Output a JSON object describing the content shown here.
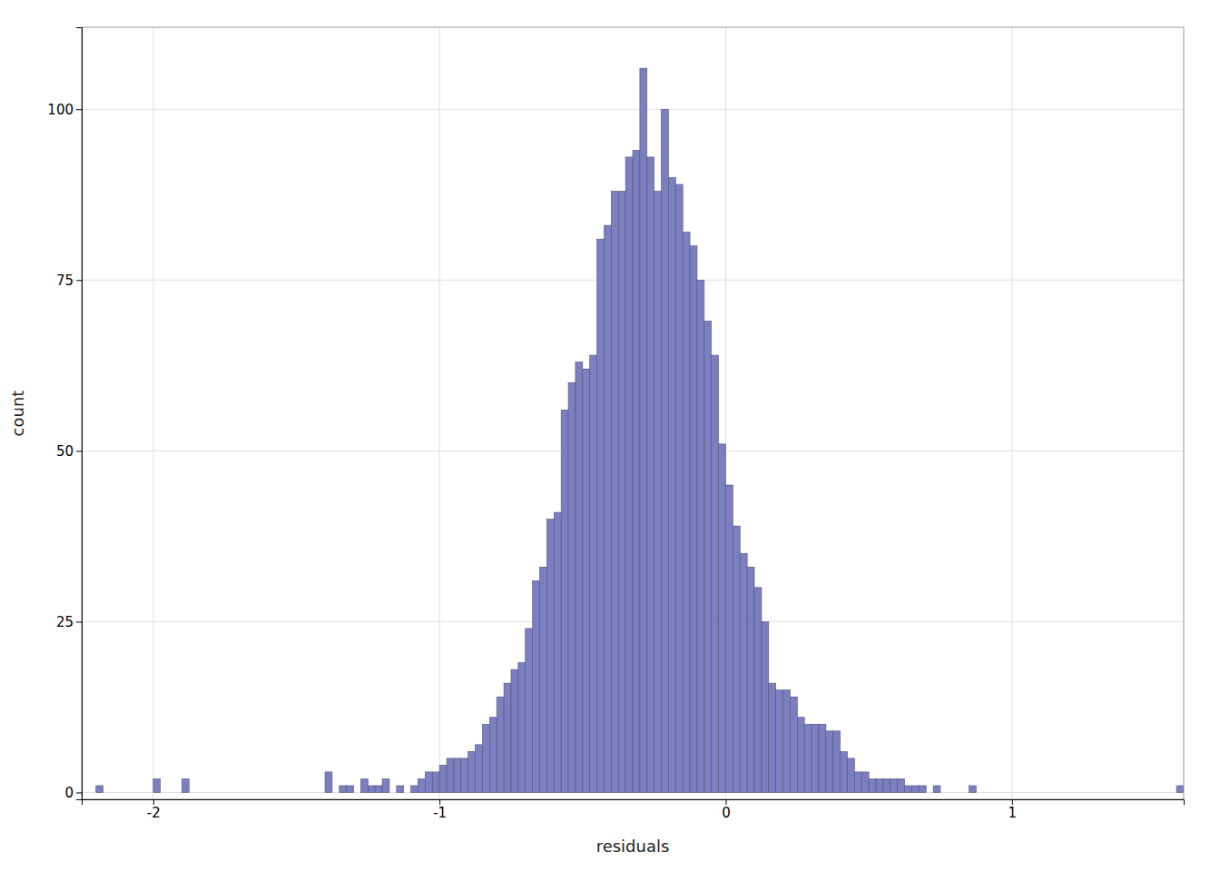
{
  "chart_data": {
    "type": "histogram",
    "xlabel": "residuals",
    "ylabel": "count",
    "xlim": [
      -2.25,
      1.6
    ],
    "ylim": [
      -1,
      112
    ],
    "xticks": [
      -2,
      -1,
      0,
      1
    ],
    "yticks": [
      0,
      25,
      50,
      75,
      100
    ],
    "color": "#7b7fbf",
    "grid": true,
    "bins": [
      -2.2,
      -2.175,
      -2.15,
      -2.125,
      -2.1,
      -2.075,
      -2.05,
      -2.025,
      -2,
      -1.975,
      -1.95,
      -1.925,
      -1.9,
      -1.875,
      -1.85,
      -1.825,
      -1.8,
      -1.775,
      -1.75,
      -1.725,
      -1.7,
      -1.675,
      -1.65,
      -1.625,
      -1.6,
      -1.575,
      -1.55,
      -1.525,
      -1.5,
      -1.475,
      -1.45,
      -1.425,
      -1.4,
      -1.375,
      -1.35,
      -1.325,
      -1.3,
      -1.275,
      -1.25,
      -1.225,
      -1.2,
      -1.175,
      -1.15,
      -1.125,
      -1.1,
      -1.075,
      -1.05,
      -1.025,
      -1,
      -0.975,
      -0.95,
      -0.925,
      -0.9,
      -0.875,
      -0.85,
      -0.825,
      -0.8,
      -0.775,
      -0.75,
      -0.725,
      -0.7,
      -0.675,
      -0.65,
      -0.625,
      -0.6,
      -0.575,
      -0.55,
      -0.525,
      -0.5,
      -0.475,
      -0.45,
      -0.425,
      -0.4,
      -0.375,
      -0.35,
      -0.325,
      -0.3,
      -0.275,
      -0.25,
      -0.225,
      -0.2,
      -0.175,
      -0.15,
      -0.125,
      -0.1,
      -0.075,
      -0.05,
      -0.025,
      0,
      0.025,
      0.05,
      0.075,
      0.1,
      0.125,
      0.15,
      0.175,
      0.2,
      0.225,
      0.25,
      0.275,
      0.3,
      0.325,
      0.35,
      0.375,
      0.4,
      0.425,
      0.45,
      0.475,
      0.5,
      0.525,
      0.55,
      0.575,
      0.6,
      0.625,
      0.65,
      0.675,
      0.7,
      0.725,
      0.75,
      0.775,
      0.8,
      0.825,
      0.85,
      0.875,
      0.9,
      0.925,
      0.95,
      0.975,
      1,
      1.025,
      1.05,
      1.075,
      1.1,
      1.125,
      1.15,
      1.175,
      1.2,
      1.225,
      1.25,
      1.275,
      1.3,
      1.325,
      1.35,
      1.375,
      1.4,
      1.425,
      1.45,
      1.475,
      1.5,
      1.525,
      1.55,
      1.575,
      1.6
    ],
    "values": [
      1,
      0,
      0,
      0,
      0,
      0,
      0,
      0,
      2,
      0,
      0,
      0,
      2,
      0,
      0,
      0,
      0,
      0,
      0,
      0,
      0,
      0,
      0,
      0,
      0,
      0,
      0,
      0,
      0,
      0,
      0,
      0,
      3,
      0,
      1,
      1,
      0,
      2,
      1,
      1,
      2,
      0,
      1,
      0,
      1,
      2,
      3,
      3,
      4,
      5,
      5,
      5,
      6,
      7,
      10,
      11,
      14,
      16,
      18,
      19,
      24,
      31,
      33,
      40,
      41,
      56,
      60,
      63,
      62,
      64,
      81,
      83,
      88,
      88,
      93,
      94,
      106,
      93,
      88,
      100,
      90,
      89,
      82,
      80,
      75,
      69,
      64,
      51,
      45,
      39,
      35,
      33,
      30,
      25,
      16,
      15,
      15,
      14,
      11,
      10,
      10,
      10,
      9,
      9,
      6,
      5,
      3,
      3,
      2,
      2,
      2,
      2,
      2,
      1,
      1,
      1,
      0,
      1,
      0,
      0,
      0,
      0,
      1,
      0,
      0,
      0,
      0,
      0,
      0,
      0,
      0,
      0,
      0,
      0,
      0,
      0,
      0,
      0,
      0,
      0,
      0,
      0,
      0,
      0,
      0,
      0,
      0,
      0,
      0,
      0,
      0,
      1
    ]
  }
}
